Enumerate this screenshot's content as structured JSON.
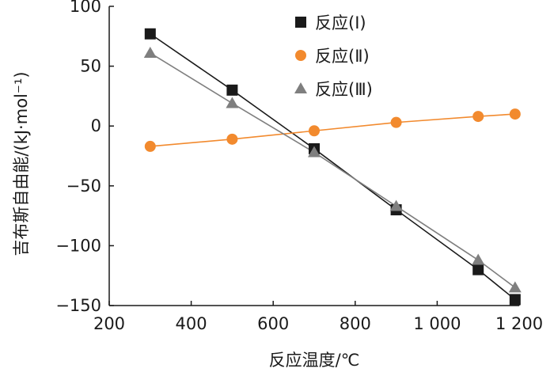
{
  "chart_data": {
    "type": "line",
    "title": "",
    "xlabel": "反应温度/℃",
    "ylabel": "吉布斯自由能/(kJ·mol⁻¹)",
    "xlim": [
      200,
      1200
    ],
    "ylim": [
      -150,
      100
    ],
    "x_ticks": [
      200,
      400,
      600,
      800,
      1000,
      1200
    ],
    "x_tick_labels": [
      "200",
      "400",
      "600",
      "800",
      "1 000",
      "1 200"
    ],
    "y_ticks": [
      -150,
      -100,
      -50,
      0,
      50,
      100
    ],
    "y_tick_labels": [
      "−150",
      "−100",
      "−50",
      "0",
      "50",
      "100"
    ],
    "grid": false,
    "legend_position": "top-center",
    "series": [
      {
        "name": "反应(Ⅰ)",
        "marker": "square",
        "color": "#1a1a1a",
        "line_color": "#1a1a1a",
        "x": [
          300,
          500,
          700,
          900,
          1100,
          1190
        ],
        "y": [
          77,
          30,
          -19,
          -70,
          -120,
          -145
        ]
      },
      {
        "name": "反应(Ⅱ)",
        "marker": "circle",
        "color": "#f28a2e",
        "line_color": "#f28a2e",
        "x": [
          300,
          500,
          700,
          900,
          1100,
          1190
        ],
        "y": [
          -17,
          -11,
          -4,
          3,
          8,
          10
        ]
      },
      {
        "name": "反应(Ⅲ)",
        "marker": "triangle",
        "color": "#7f7f7f",
        "line_color": "#7f7f7f",
        "x": [
          300,
          500,
          700,
          900,
          1100,
          1190
        ],
        "y": [
          61,
          19,
          -22,
          -67,
          -112,
          -135
        ]
      }
    ]
  }
}
